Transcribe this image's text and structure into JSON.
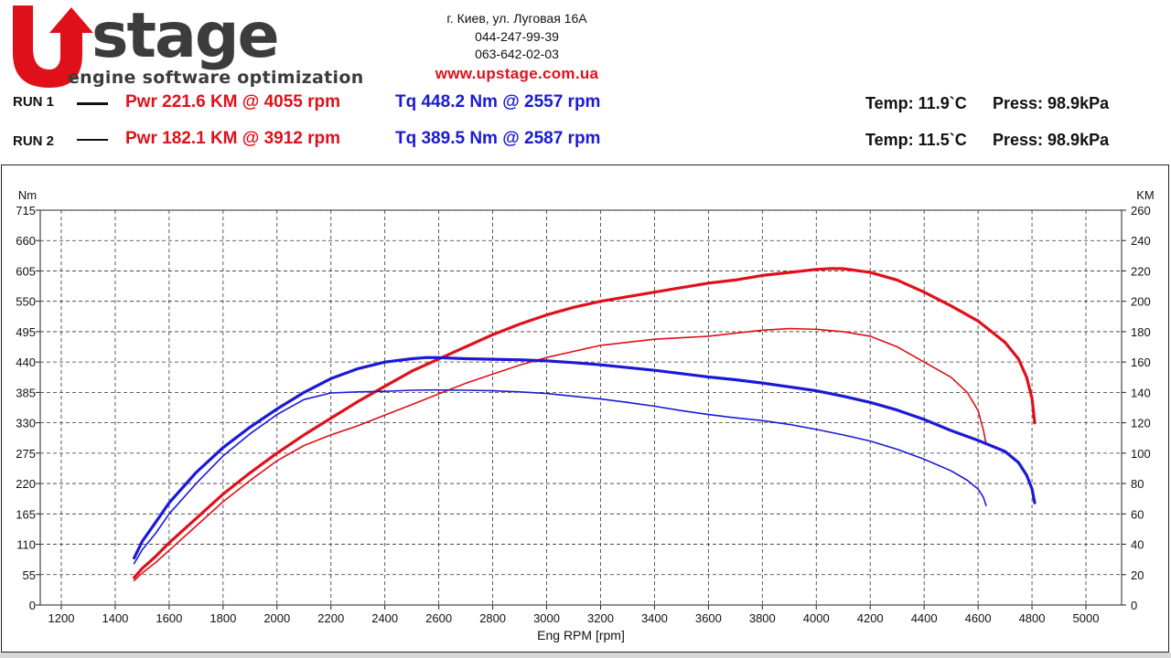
{
  "header": {
    "logo": {
      "brand": "Upstage",
      "tagline": "engine software optimization"
    },
    "address": "г. Киев, ул. Луговая 16А",
    "phone1": "044-247-99-39",
    "phone2": "063-642-02-03",
    "website": "www.upstage.com.ua"
  },
  "runs": [
    {
      "label": "RUN 1",
      "power": "Pwr  221.6 KM @ 4055 rpm",
      "torque": "Tq 448.2 Nm @ 2557 rpm",
      "temp": "Temp: 11.9`C",
      "press": "Press: 98.9kPa"
    },
    {
      "label": "RUN 2",
      "power": "Pwr  182.1 KM @ 3912 rpm",
      "torque": "Tq 389.5 Nm @ 2587 rpm",
      "temp": "Temp: 11.5`C",
      "press": "Press: 98.9kPa"
    }
  ],
  "colors": {
    "power": "#e0101a",
    "torque": "#1a1ad6",
    "brand_red": "#e0101a",
    "brand_dark": "#3c3c3c"
  },
  "chart_data": {
    "type": "line",
    "xlabel": "Eng RPM [rpm]",
    "ylabel_left": "Nm",
    "ylabel_right": "KM",
    "xlim": [
      1100,
      5100
    ],
    "ylim_left": [
      0,
      715
    ],
    "ylim_right": [
      0,
      260
    ],
    "x_ticks": [
      1200,
      1400,
      1600,
      1800,
      2000,
      2200,
      2400,
      2600,
      2800,
      3000,
      3200,
      3400,
      3600,
      3800,
      4000,
      4200,
      4400,
      4600,
      4800,
      5000
    ],
    "y_ticks_left": [
      0,
      55,
      110,
      165,
      220,
      275,
      330,
      385,
      440,
      495,
      550,
      605,
      660,
      715
    ],
    "y_ticks_right": [
      0,
      20,
      40,
      60,
      80,
      100,
      120,
      140,
      160,
      180,
      200,
      220,
      240,
      260
    ],
    "grid": true,
    "series": [
      {
        "name": "RUN 1",
        "quantity": "power",
        "axis": "right",
        "color": "#e0101a",
        "width": 3.2,
        "points": [
          [
            1470,
            18
          ],
          [
            1500,
            24
          ],
          [
            1550,
            32
          ],
          [
            1600,
            41
          ],
          [
            1700,
            57
          ],
          [
            1800,
            73
          ],
          [
            1900,
            87
          ],
          [
            2000,
            100
          ],
          [
            2100,
            112
          ],
          [
            2200,
            123
          ],
          [
            2300,
            134
          ],
          [
            2400,
            144
          ],
          [
            2500,
            154
          ],
          [
            2600,
            162
          ],
          [
            2700,
            170
          ],
          [
            2800,
            178
          ],
          [
            2900,
            185
          ],
          [
            3000,
            191
          ],
          [
            3100,
            196
          ],
          [
            3200,
            200
          ],
          [
            3300,
            203
          ],
          [
            3400,
            206
          ],
          [
            3500,
            209
          ],
          [
            3600,
            212
          ],
          [
            3700,
            214
          ],
          [
            3800,
            217
          ],
          [
            3900,
            219
          ],
          [
            4000,
            221
          ],
          [
            4055,
            221.6
          ],
          [
            4100,
            221.5
          ],
          [
            4200,
            219
          ],
          [
            4300,
            214
          ],
          [
            4400,
            206
          ],
          [
            4500,
            197
          ],
          [
            4600,
            187
          ],
          [
            4700,
            173
          ],
          [
            4750,
            162
          ],
          [
            4780,
            150
          ],
          [
            4800,
            136
          ],
          [
            4810,
            120
          ]
        ]
      },
      {
        "name": "RUN 2",
        "quantity": "power",
        "axis": "right",
        "color": "#e0101a",
        "width": 1.6,
        "points": [
          [
            1470,
            16
          ],
          [
            1500,
            21
          ],
          [
            1550,
            28
          ],
          [
            1600,
            36
          ],
          [
            1700,
            52
          ],
          [
            1800,
            68
          ],
          [
            1900,
            82
          ],
          [
            2000,
            95
          ],
          [
            2100,
            105
          ],
          [
            2200,
            112
          ],
          [
            2300,
            118
          ],
          [
            2400,
            125
          ],
          [
            2500,
            132
          ],
          [
            2600,
            139
          ],
          [
            2700,
            146
          ],
          [
            2800,
            152
          ],
          [
            2900,
            158
          ],
          [
            3000,
            163
          ],
          [
            3100,
            167
          ],
          [
            3200,
            171
          ],
          [
            3300,
            173
          ],
          [
            3400,
            175
          ],
          [
            3500,
            176
          ],
          [
            3600,
            177
          ],
          [
            3700,
            179
          ],
          [
            3800,
            181
          ],
          [
            3900,
            182
          ],
          [
            4000,
            181.6
          ],
          [
            4100,
            180
          ],
          [
            4200,
            177
          ],
          [
            4300,
            170
          ],
          [
            4400,
            160
          ],
          [
            4500,
            150
          ],
          [
            4560,
            140
          ],
          [
            4600,
            128
          ],
          [
            4620,
            115
          ],
          [
            4630,
            106
          ]
        ]
      },
      {
        "name": "RUN 1",
        "quantity": "torque",
        "axis": "left",
        "color": "#1a1ad6",
        "width": 3.2,
        "points": [
          [
            1470,
            85
          ],
          [
            1500,
            115
          ],
          [
            1550,
            150
          ],
          [
            1600,
            185
          ],
          [
            1700,
            240
          ],
          [
            1800,
            285
          ],
          [
            1900,
            322
          ],
          [
            2000,
            355
          ],
          [
            2100,
            385
          ],
          [
            2200,
            410
          ],
          [
            2300,
            428
          ],
          [
            2400,
            440
          ],
          [
            2500,
            446
          ],
          [
            2557,
            448.2
          ],
          [
            2600,
            448
          ],
          [
            2700,
            446
          ],
          [
            2800,
            445
          ],
          [
            2900,
            444
          ],
          [
            3000,
            442
          ],
          [
            3100,
            439
          ],
          [
            3200,
            435
          ],
          [
            3300,
            430
          ],
          [
            3400,
            425
          ],
          [
            3500,
            419
          ],
          [
            3600,
            413
          ],
          [
            3700,
            408
          ],
          [
            3800,
            402
          ],
          [
            3900,
            395
          ],
          [
            4000,
            388
          ],
          [
            4100,
            378
          ],
          [
            4200,
            367
          ],
          [
            4300,
            353
          ],
          [
            4400,
            336
          ],
          [
            4500,
            316
          ],
          [
            4600,
            298
          ],
          [
            4700,
            278
          ],
          [
            4750,
            258
          ],
          [
            4780,
            235
          ],
          [
            4800,
            210
          ],
          [
            4810,
            185
          ]
        ]
      },
      {
        "name": "RUN 2",
        "quantity": "torque",
        "axis": "left",
        "color": "#1a1ad6",
        "width": 1.6,
        "points": [
          [
            1470,
            75
          ],
          [
            1500,
            100
          ],
          [
            1550,
            130
          ],
          [
            1600,
            165
          ],
          [
            1700,
            220
          ],
          [
            1800,
            270
          ],
          [
            1900,
            310
          ],
          [
            2000,
            345
          ],
          [
            2100,
            372
          ],
          [
            2200,
            384
          ],
          [
            2300,
            386
          ],
          [
            2400,
            387
          ],
          [
            2500,
            389
          ],
          [
            2587,
            389.5
          ],
          [
            2700,
            389
          ],
          [
            2800,
            388
          ],
          [
            2900,
            386
          ],
          [
            3000,
            383
          ],
          [
            3100,
            378
          ],
          [
            3200,
            373
          ],
          [
            3300,
            367
          ],
          [
            3400,
            360
          ],
          [
            3500,
            352
          ],
          [
            3600,
            345
          ],
          [
            3700,
            339
          ],
          [
            3800,
            334
          ],
          [
            3900,
            327
          ],
          [
            4000,
            318
          ],
          [
            4100,
            308
          ],
          [
            4200,
            297
          ],
          [
            4300,
            282
          ],
          [
            4400,
            264
          ],
          [
            4500,
            243
          ],
          [
            4560,
            226
          ],
          [
            4600,
            210
          ],
          [
            4620,
            195
          ],
          [
            4630,
            180
          ]
        ]
      }
    ]
  }
}
